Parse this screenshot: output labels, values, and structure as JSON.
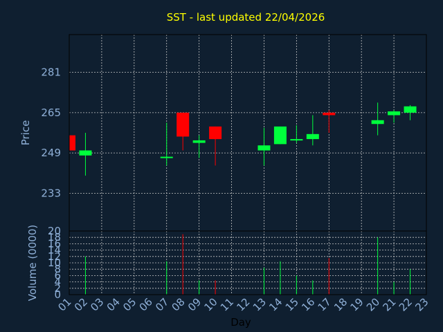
{
  "chart_data": {
    "type": "candlestick",
    "title": "SST - last updated 22/04/2026",
    "xlabel": "Day",
    "categories": [
      "01",
      "02",
      "03",
      "04",
      "05",
      "06",
      "07",
      "08",
      "09",
      "10",
      "11",
      "12",
      "13",
      "14",
      "15",
      "16",
      "17",
      "18",
      "19",
      "20",
      "21",
      "22",
      "23"
    ],
    "price_panel": {
      "ylabel": "Price",
      "ylim": [
        218,
        296
      ],
      "yticks": [
        233,
        249,
        265,
        281
      ],
      "grid": true
    },
    "volume_panel": {
      "ylabel": "Volume (0000)",
      "ylim": [
        0,
        20
      ],
      "yticks": [
        0,
        2,
        4,
        6,
        8,
        10,
        12,
        14,
        16,
        18,
        20
      ],
      "grid": true
    },
    "colors": {
      "up": "#00ff3c",
      "down": "#ff0000",
      "background": "#0f1f30",
      "title": "#ffff00",
      "axis_text": "#8fb0d8"
    },
    "candles": [
      {
        "day": "01",
        "open": 256,
        "high": 256,
        "low": 250,
        "close": 250,
        "volume": 0
      },
      {
        "day": "02",
        "open": 248,
        "high": 257,
        "low": 240,
        "close": 250,
        "volume": 12
      },
      {
        "day": "07",
        "open": 247,
        "high": 261,
        "low": 244,
        "close": 247.5,
        "volume": 10.5
      },
      {
        "day": "08",
        "open": 265,
        "high": 265,
        "low": 250,
        "close": 255.5,
        "volume": 19
      },
      {
        "day": "09",
        "open": 253,
        "high": 256,
        "low": 247,
        "close": 254,
        "volume": 4.5
      },
      {
        "day": "10",
        "open": 259.5,
        "high": 259.5,
        "low": 244,
        "close": 254.5,
        "volume": 4.5
      },
      {
        "day": "13",
        "open": 250,
        "high": 259,
        "low": 244,
        "close": 252,
        "volume": 8.5
      },
      {
        "day": "14",
        "open": 252.5,
        "high": 259.5,
        "low": 252.5,
        "close": 259.5,
        "volume": 10.5
      },
      {
        "day": "15",
        "open": 254,
        "high": 260,
        "low": 253,
        "close": 254.5,
        "volume": 6
      },
      {
        "day": "16",
        "open": 254.5,
        "high": 264,
        "low": 252,
        "close": 256.5,
        "volume": 4.5
      },
      {
        "day": "17",
        "open": 265,
        "high": 266,
        "low": 257,
        "close": 264,
        "volume": 11.5
      },
      {
        "day": "20",
        "open": 260.5,
        "high": 269,
        "low": 256,
        "close": 262,
        "volume": 18
      },
      {
        "day": "21",
        "open": 264,
        "high": 266,
        "low": 261,
        "close": 265.5,
        "volume": 4
      },
      {
        "day": "22",
        "open": 265,
        "high": 268,
        "low": 262,
        "close": 267.5,
        "volume": 8
      }
    ]
  }
}
